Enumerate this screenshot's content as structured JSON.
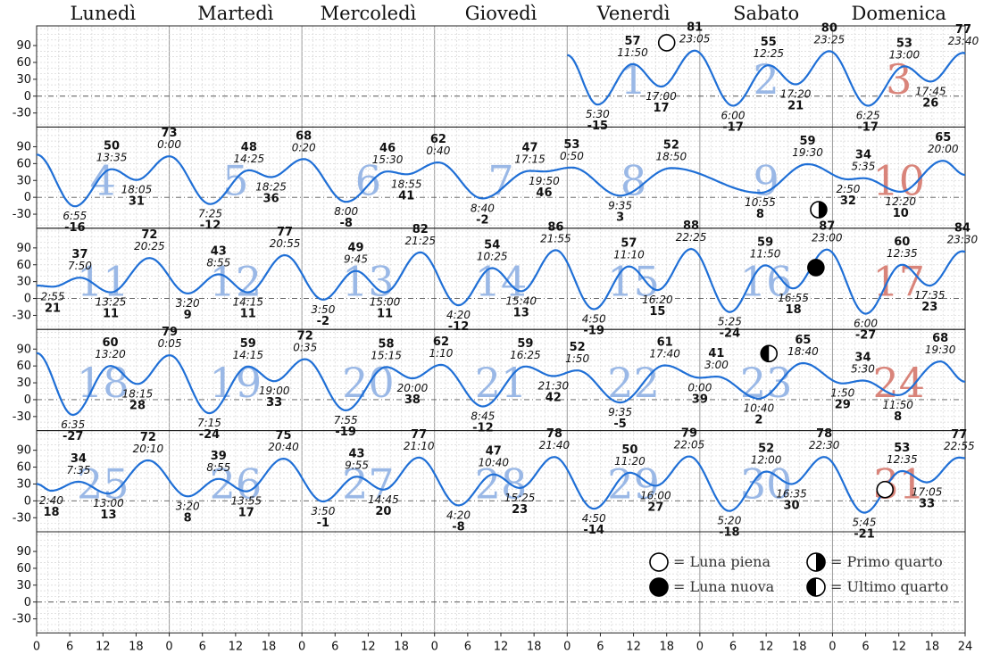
{
  "chart_data": {
    "type": "line",
    "title": "",
    "xlabel": "",
    "ylabel": "",
    "weekdays": [
      "Lunedì",
      "Martedì",
      "Mercoledì",
      "Giovedì",
      "Venerdì",
      "Sabato",
      "Domenica"
    ],
    "x_ticks": [
      "0",
      "6",
      "12",
      "18",
      "0",
      "6",
      "12",
      "18",
      "0",
      "6",
      "12",
      "18",
      "0",
      "6",
      "12",
      "18",
      "0",
      "6",
      "12",
      "18",
      "0",
      "6",
      "12",
      "18",
      "0",
      "6",
      "12",
      "18",
      "24"
    ],
    "y_ticks": [
      "90",
      "60",
      "30",
      "0",
      "-30"
    ],
    "ylim": [
      -55,
      125
    ],
    "series_color": "#1f6fd6",
    "weekend_number_color": "#d9847a",
    "weekday_number_color": "#9ab8e6",
    "grid": true,
    "weeks": [
      {
        "days": [
          {
            "col": 4,
            "num": "1",
            "weekend": false
          },
          {
            "col": 5,
            "num": "2",
            "weekend": false
          },
          {
            "col": 6,
            "num": "3",
            "weekend": true
          }
        ],
        "start_hour": 96,
        "start_value": 73,
        "extremes": [
          {
            "hour": 101.5,
            "value": -15,
            "time": "5:30"
          },
          {
            "hour": 107.83,
            "value": 57,
            "time": "11:50"
          },
          {
            "hour": 113.0,
            "value": 17,
            "time": "17:00"
          },
          {
            "hour": 119.08,
            "value": 81,
            "time": "23:05"
          },
          {
            "hour": 126.0,
            "value": -17,
            "time": "6:00"
          },
          {
            "hour": 132.42,
            "value": 55,
            "time": "12:25"
          },
          {
            "hour": 137.33,
            "value": 21,
            "time": "17:20"
          },
          {
            "hour": 143.42,
            "value": 80,
            "time": "23:25"
          },
          {
            "hour": 150.42,
            "value": -17,
            "time": "6:25"
          },
          {
            "hour": 157.0,
            "value": 53,
            "time": "13:00"
          },
          {
            "hour": 161.75,
            "value": 26,
            "time": "17:45"
          },
          {
            "hour": 167.67,
            "value": 77,
            "time": "23:40"
          }
        ],
        "end_hour": 168,
        "end_value": 76
      },
      {
        "days": [
          {
            "col": 0,
            "num": "4",
            "weekend": false
          },
          {
            "col": 1,
            "num": "5",
            "weekend": false
          },
          {
            "col": 2,
            "num": "6",
            "weekend": false
          },
          {
            "col": 3,
            "num": "7",
            "weekend": false
          },
          {
            "col": 4,
            "num": "8",
            "weekend": false
          },
          {
            "col": 5,
            "num": "9",
            "weekend": false
          },
          {
            "col": 6,
            "num": "10",
            "weekend": true
          }
        ],
        "start_hour": 0,
        "start_value": 76,
        "extremes": [
          {
            "hour": 6.92,
            "value": -16,
            "time": "6:55"
          },
          {
            "hour": 13.58,
            "value": 50,
            "time": "13:35"
          },
          {
            "hour": 18.08,
            "value": 31,
            "time": "18:05"
          },
          {
            "hour": 24.0,
            "value": 73,
            "time": "0:00"
          },
          {
            "hour": 31.42,
            "value": -12,
            "time": "7:25"
          },
          {
            "hour": 38.42,
            "value": 48,
            "time": "14:25"
          },
          {
            "hour": 42.42,
            "value": 36,
            "time": "18:25"
          },
          {
            "hour": 48.33,
            "value": 68,
            "time": "0:20"
          },
          {
            "hour": 56.0,
            "value": -8,
            "time": "8:00"
          },
          {
            "hour": 63.5,
            "value": 46,
            "time": "15:30"
          },
          {
            "hour": 66.92,
            "value": 41,
            "time": "18:55"
          },
          {
            "hour": 72.67,
            "value": 62,
            "time": "0:40"
          },
          {
            "hour": 80.67,
            "value": -2,
            "time": "8:40"
          },
          {
            "hour": 89.25,
            "value": 47,
            "time": "17:15"
          },
          {
            "hour": 91.83,
            "value": 46,
            "time": "19:50"
          },
          {
            "hour": 96.83,
            "value": 53,
            "time": "0:50"
          },
          {
            "hour": 105.58,
            "value": 3,
            "time": "9:35"
          },
          {
            "hour": 114.83,
            "value": 52,
            "time": "18:50"
          },
          {
            "hour": 130.92,
            "value": 8,
            "time": "10:55"
          },
          {
            "hour": 139.5,
            "value": 59,
            "time": "19:30"
          },
          {
            "hour": 146.83,
            "value": 32,
            "time": "2:50"
          },
          {
            "hour": 149.58,
            "value": 34,
            "time": "5:35"
          },
          {
            "hour": 156.33,
            "value": 10,
            "time": "12:20"
          },
          {
            "hour": 164.0,
            "value": 65,
            "time": "20:00"
          }
        ],
        "end_hour": 168,
        "end_value": 40
      },
      {
        "days": [
          {
            "col": 0,
            "num": "11",
            "weekend": false
          },
          {
            "col": 1,
            "num": "12",
            "weekend": false
          },
          {
            "col": 2,
            "num": "13",
            "weekend": false
          },
          {
            "col": 3,
            "num": "14",
            "weekend": false
          },
          {
            "col": 4,
            "num": "15",
            "weekend": false
          },
          {
            "col": 5,
            "num": "16",
            "weekend": false
          },
          {
            "col": 6,
            "num": "17",
            "weekend": true
          }
        ],
        "start_hour": 0,
        "start_value": 23,
        "extremes": [
          {
            "hour": 2.92,
            "value": 21,
            "time": "2:55"
          },
          {
            "hour": 7.83,
            "value": 37,
            "time": "7:50"
          },
          {
            "hour": 13.42,
            "value": 11,
            "time": "13:25"
          },
          {
            "hour": 20.42,
            "value": 72,
            "time": "20:25"
          },
          {
            "hour": 27.33,
            "value": 9,
            "time": "3:20"
          },
          {
            "hour": 32.92,
            "value": 43,
            "time": "8:55"
          },
          {
            "hour": 38.25,
            "value": 11,
            "time": "14:15"
          },
          {
            "hour": 44.92,
            "value": 77,
            "time": "20:55"
          },
          {
            "hour": 51.83,
            "value": -2,
            "time": "3:50"
          },
          {
            "hour": 57.75,
            "value": 49,
            "time": "9:45"
          },
          {
            "hour": 63.0,
            "value": 11,
            "time": "15:00"
          },
          {
            "hour": 69.42,
            "value": 82,
            "time": "21:25"
          },
          {
            "hour": 76.33,
            "value": -12,
            "time": "4:20"
          },
          {
            "hour": 82.42,
            "value": 54,
            "time": "10:25"
          },
          {
            "hour": 87.67,
            "value": 13,
            "time": "15:40"
          },
          {
            "hour": 93.92,
            "value": 86,
            "time": "21:55"
          },
          {
            "hour": 100.83,
            "value": -19,
            "time": "4:50"
          },
          {
            "hour": 107.17,
            "value": 57,
            "time": "11:10"
          },
          {
            "hour": 112.33,
            "value": 15,
            "time": "16:20"
          },
          {
            "hour": 118.42,
            "value": 88,
            "time": "22:25"
          },
          {
            "hour": 125.42,
            "value": -24,
            "time": "5:25"
          },
          {
            "hour": 131.83,
            "value": 59,
            "time": "11:50"
          },
          {
            "hour": 136.92,
            "value": 18,
            "time": "16:55"
          },
          {
            "hour": 143.0,
            "value": 87,
            "time": "23:00"
          },
          {
            "hour": 150.0,
            "value": -27,
            "time": "6:00"
          },
          {
            "hour": 156.58,
            "value": 60,
            "time": "12:35"
          },
          {
            "hour": 161.58,
            "value": 23,
            "time": "17:35"
          },
          {
            "hour": 167.5,
            "value": 84,
            "time": "23:30"
          }
        ],
        "end_hour": 168,
        "end_value": 83
      },
      {
        "days": [
          {
            "col": 0,
            "num": "18",
            "weekend": false
          },
          {
            "col": 1,
            "num": "19",
            "weekend": false
          },
          {
            "col": 2,
            "num": "20",
            "weekend": false
          },
          {
            "col": 3,
            "num": "21",
            "weekend": false
          },
          {
            "col": 4,
            "num": "22",
            "weekend": false
          },
          {
            "col": 5,
            "num": "23",
            "weekend": false
          },
          {
            "col": 6,
            "num": "24",
            "weekend": true
          }
        ],
        "start_hour": 0,
        "start_value": 83,
        "extremes": [
          {
            "hour": 6.58,
            "value": -27,
            "time": "6:35"
          },
          {
            "hour": 13.33,
            "value": 60,
            "time": "13:20"
          },
          {
            "hour": 18.25,
            "value": 28,
            "time": "18:15"
          },
          {
            "hour": 24.08,
            "value": 79,
            "time": "0:05"
          },
          {
            "hour": 31.25,
            "value": -24,
            "time": "7:15"
          },
          {
            "hour": 38.25,
            "value": 59,
            "time": "14:15"
          },
          {
            "hour": 43.0,
            "value": 33,
            "time": "19:00"
          },
          {
            "hour": 48.58,
            "value": 72,
            "time": "0:35"
          },
          {
            "hour": 55.92,
            "value": -19,
            "time": "7:55"
          },
          {
            "hour": 63.25,
            "value": 58,
            "time": "15:15"
          },
          {
            "hour": 68.0,
            "value": 38,
            "time": "20:00"
          },
          {
            "hour": 73.17,
            "value": 62,
            "time": "1:10"
          },
          {
            "hour": 80.75,
            "value": -12,
            "time": "8:45"
          },
          {
            "hour": 88.42,
            "value": 59,
            "time": "16:25"
          },
          {
            "hour": 93.5,
            "value": 42,
            "time": "21:30"
          },
          {
            "hour": 97.83,
            "value": 52,
            "time": "1:50"
          },
          {
            "hour": 105.58,
            "value": -5,
            "time": "9:35"
          },
          {
            "hour": 113.67,
            "value": 61,
            "time": "17:40"
          },
          {
            "hour": 120.0,
            "value": 39,
            "time": "0:00"
          },
          {
            "hour": 123.0,
            "value": 41,
            "time": "3:00"
          },
          {
            "hour": 130.67,
            "value": 2,
            "time": "10:40"
          },
          {
            "hour": 138.67,
            "value": 65,
            "time": "18:40"
          },
          {
            "hour": 145.83,
            "value": 29,
            "time": "1:50"
          },
          {
            "hour": 149.5,
            "value": 34,
            "time": "5:30"
          },
          {
            "hour": 155.83,
            "value": 8,
            "time": "11:50"
          },
          {
            "hour": 163.5,
            "value": 68,
            "time": "19:30"
          }
        ],
        "end_hour": 168,
        "end_value": 32
      },
      {
        "days": [
          {
            "col": 0,
            "num": "25",
            "weekend": false
          },
          {
            "col": 1,
            "num": "26",
            "weekend": false
          },
          {
            "col": 2,
            "num": "27",
            "weekend": false
          },
          {
            "col": 3,
            "num": "28",
            "weekend": false
          },
          {
            "col": 4,
            "num": "29",
            "weekend": false
          },
          {
            "col": 5,
            "num": "30",
            "weekend": false
          },
          {
            "col": 6,
            "num": "31",
            "weekend": true
          }
        ],
        "start_hour": 0,
        "start_value": 30,
        "extremes": [
          {
            "hour": 2.67,
            "value": 18,
            "time": "2:40"
          },
          {
            "hour": 7.58,
            "value": 34,
            "time": "7:35"
          },
          {
            "hour": 13.0,
            "value": 13,
            "time": "13:00"
          },
          {
            "hour": 20.17,
            "value": 72,
            "time": "20:10"
          },
          {
            "hour": 27.33,
            "value": 8,
            "time": "3:20"
          },
          {
            "hour": 32.92,
            "value": 39,
            "time": "8:55"
          },
          {
            "hour": 37.92,
            "value": 17,
            "time": "13:55"
          },
          {
            "hour": 44.67,
            "value": 75,
            "time": "20:40"
          },
          {
            "hour": 51.83,
            "value": -1,
            "time": "3:50"
          },
          {
            "hour": 57.92,
            "value": 43,
            "time": "9:55"
          },
          {
            "hour": 62.75,
            "value": 20,
            "time": "14:45"
          },
          {
            "hour": 69.17,
            "value": 77,
            "time": "21:10"
          },
          {
            "hour": 76.33,
            "value": -8,
            "time": "4:20"
          },
          {
            "hour": 82.67,
            "value": 47,
            "time": "10:40"
          },
          {
            "hour": 87.42,
            "value": 23,
            "time": "15:25"
          },
          {
            "hour": 93.67,
            "value": 78,
            "time": "21:40"
          },
          {
            "hour": 100.83,
            "value": -14,
            "time": "4:50"
          },
          {
            "hour": 107.33,
            "value": 50,
            "time": "11:20"
          },
          {
            "hour": 112.0,
            "value": 27,
            "time": "16:00"
          },
          {
            "hour": 118.08,
            "value": 79,
            "time": "22:05"
          },
          {
            "hour": 125.33,
            "value": -18,
            "time": "5:20"
          },
          {
            "hour": 132.0,
            "value": 52,
            "time": "12:00"
          },
          {
            "hour": 136.58,
            "value": 30,
            "time": "16:35"
          },
          {
            "hour": 142.5,
            "value": 78,
            "time": "22:30"
          },
          {
            "hour": 149.75,
            "value": -21,
            "time": "5:45"
          },
          {
            "hour": 156.58,
            "value": 53,
            "time": "12:35"
          },
          {
            "hour": 161.08,
            "value": 33,
            "time": "17:05"
          },
          {
            "hour": 166.92,
            "value": 77,
            "time": "22:55"
          }
        ],
        "end_hour": 168,
        "end_value": 76
      },
      {
        "days": [],
        "extremes": []
      }
    ],
    "moon_phases": [
      {
        "week": 0,
        "hour": 114,
        "value": 95,
        "phase": "full"
      },
      {
        "week": 1,
        "hour": 141.5,
        "value": -22,
        "phase": "first"
      },
      {
        "week": 2,
        "hour": 141,
        "value": 55,
        "phase": "new"
      },
      {
        "week": 3,
        "hour": 132.5,
        "value": 82,
        "phase": "last"
      },
      {
        "week": 4,
        "hour": 153.5,
        "value": 20,
        "phase": "full"
      }
    ],
    "legend": [
      {
        "phase": "full",
        "label": "= Luna piena"
      },
      {
        "phase": "first",
        "label": "= Primo quarto"
      },
      {
        "phase": "new",
        "label": "= Luna nuova"
      },
      {
        "phase": "last",
        "label": "= Ultimo quarto"
      }
    ]
  }
}
